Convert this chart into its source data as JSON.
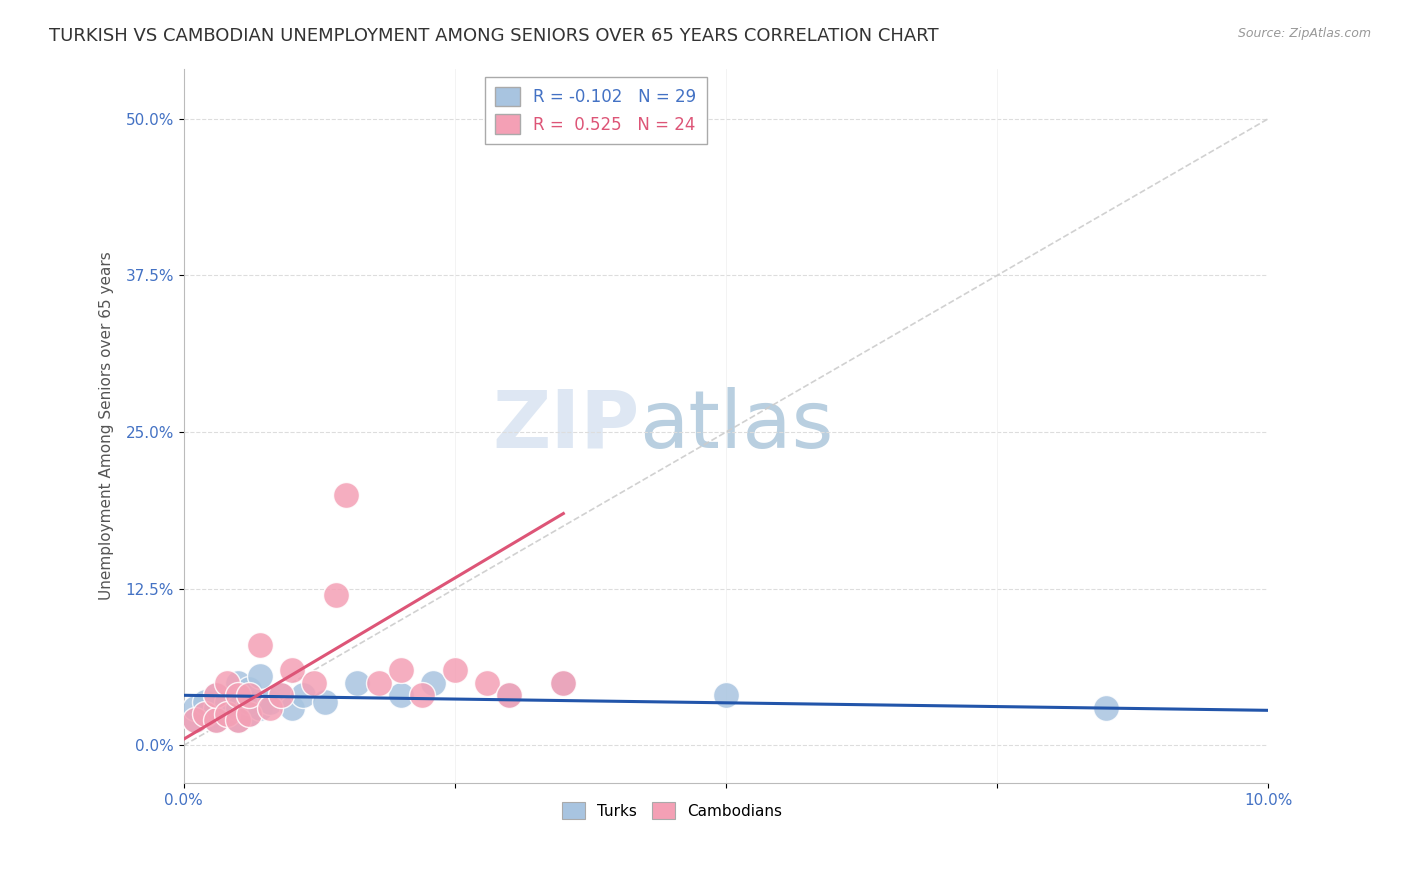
{
  "title": "TURKISH VS CAMBODIAN UNEMPLOYMENT AMONG SENIORS OVER 65 YEARS CORRELATION CHART",
  "source": "Source: ZipAtlas.com",
  "ylabel": "Unemployment Among Seniors over 65 years",
  "ytick_labels": [
    "0.0%",
    "12.5%",
    "25.0%",
    "37.5%",
    "50.0%"
  ],
  "ytick_values": [
    0.0,
    0.125,
    0.25,
    0.375,
    0.5
  ],
  "xmin": 0.0,
  "xmax": 0.1,
  "ymin": -0.03,
  "ymax": 0.54,
  "legend_turks_R": "-0.102",
  "legend_turks_N": "29",
  "legend_cambodians_R": "0.525",
  "legend_cambodians_N": "24",
  "turk_color": "#a8c4e0",
  "cambodian_color": "#f4a0b5",
  "turk_line_color": "#2255aa",
  "cambodian_line_color": "#dd5577",
  "diagonal_line_color": "#cccccc",
  "turks_x": [
    0.001,
    0.001,
    0.002,
    0.002,
    0.003,
    0.003,
    0.003,
    0.004,
    0.004,
    0.005,
    0.005,
    0.005,
    0.006,
    0.006,
    0.006,
    0.007,
    0.007,
    0.008,
    0.009,
    0.01,
    0.011,
    0.013,
    0.016,
    0.02,
    0.023,
    0.03,
    0.035,
    0.05,
    0.085
  ],
  "turks_y": [
    0.02,
    0.03,
    0.025,
    0.035,
    0.02,
    0.03,
    0.04,
    0.025,
    0.035,
    0.02,
    0.03,
    0.05,
    0.025,
    0.035,
    0.045,
    0.03,
    0.055,
    0.035,
    0.04,
    0.03,
    0.04,
    0.035,
    0.05,
    0.04,
    0.05,
    0.04,
    0.05,
    0.04,
    0.03
  ],
  "cambodians_x": [
    0.001,
    0.002,
    0.003,
    0.003,
    0.004,
    0.004,
    0.005,
    0.005,
    0.006,
    0.006,
    0.007,
    0.008,
    0.009,
    0.01,
    0.012,
    0.014,
    0.015,
    0.018,
    0.02,
    0.022,
    0.025,
    0.028,
    0.03,
    0.035
  ],
  "cambodians_y": [
    0.02,
    0.025,
    0.02,
    0.04,
    0.025,
    0.05,
    0.02,
    0.04,
    0.025,
    0.04,
    0.08,
    0.03,
    0.04,
    0.06,
    0.05,
    0.12,
    0.2,
    0.05,
    0.06,
    0.04,
    0.06,
    0.05,
    0.04,
    0.05
  ],
  "turks_line_x0": 0.0,
  "turks_line_x1": 0.1,
  "turks_line_y0": 0.04,
  "turks_line_y1": 0.028,
  "camb_line_x0": 0.0,
  "camb_line_x1": 0.035,
  "camb_line_y0": 0.005,
  "camb_line_y1": 0.185,
  "watermark_zip": "ZIP",
  "watermark_atlas": "atlas",
  "background_color": "#ffffff",
  "title_color": "#333333",
  "axis_label_color": "#4472c4",
  "title_fontsize": 13,
  "axis_fontsize": 11,
  "legend_fontsize": 12
}
